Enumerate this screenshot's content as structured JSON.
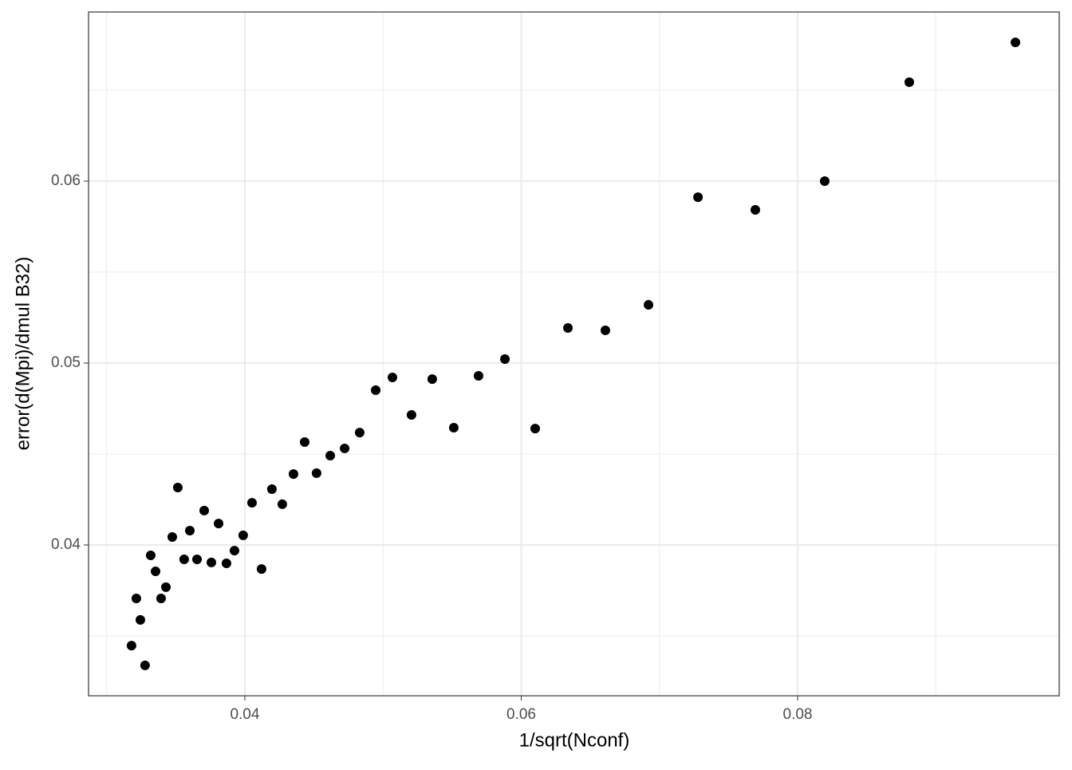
{
  "chart_data": {
    "type": "scatter",
    "x_label": "1/sqrt(Nconf)",
    "y_label": "error(d(Mpi)/dmul B32)",
    "color": "#000000",
    "x": [
      0.0318,
      0.03215,
      0.03244,
      0.03278,
      0.03319,
      0.03354,
      0.03394,
      0.03429,
      0.03475,
      0.03515,
      0.03561,
      0.03602,
      0.03654,
      0.03706,
      0.03758,
      0.0381,
      0.03867,
      0.03925,
      0.03988,
      0.04052,
      0.04121,
      0.04196,
      0.04271,
      0.04352,
      0.04433,
      0.04519,
      0.04618,
      0.04722,
      0.04831,
      0.04947,
      0.05068,
      0.05206,
      0.05356,
      0.05512,
      0.05691,
      0.05882,
      0.06101,
      0.06338,
      0.06609,
      0.06921,
      0.07279,
      0.07694,
      0.08196,
      0.08808,
      0.09576
    ],
    "values": [
      0.03447,
      0.03706,
      0.03588,
      0.03338,
      0.03943,
      0.03855,
      0.03706,
      0.03768,
      0.04044,
      0.04316,
      0.03921,
      0.04079,
      0.03921,
      0.04189,
      0.03904,
      0.04118,
      0.03899,
      0.03969,
      0.04053,
      0.04232,
      0.03868,
      0.04307,
      0.04224,
      0.0439,
      0.04566,
      0.04395,
      0.04491,
      0.04531,
      0.04618,
      0.04851,
      0.04921,
      0.04715,
      0.04912,
      0.04645,
      0.0493,
      0.05022,
      0.0464,
      0.05193,
      0.0518,
      0.0532,
      0.05912,
      0.05842,
      0.06,
      0.06544,
      0.06763
    ],
    "xlim": [
      0.02869,
      0.09893
    ],
    "ylim": [
      0.03171,
      0.0693
    ],
    "xticks": [
      0.04,
      0.06,
      0.08
    ],
    "yticks": [
      0.04,
      0.05,
      0.06
    ],
    "x_minor_grid": [
      0.03,
      0.05,
      0.07,
      0.09
    ],
    "y_minor_grid": [
      0.035,
      0.045,
      0.055,
      0.065
    ],
    "grid": true
  }
}
